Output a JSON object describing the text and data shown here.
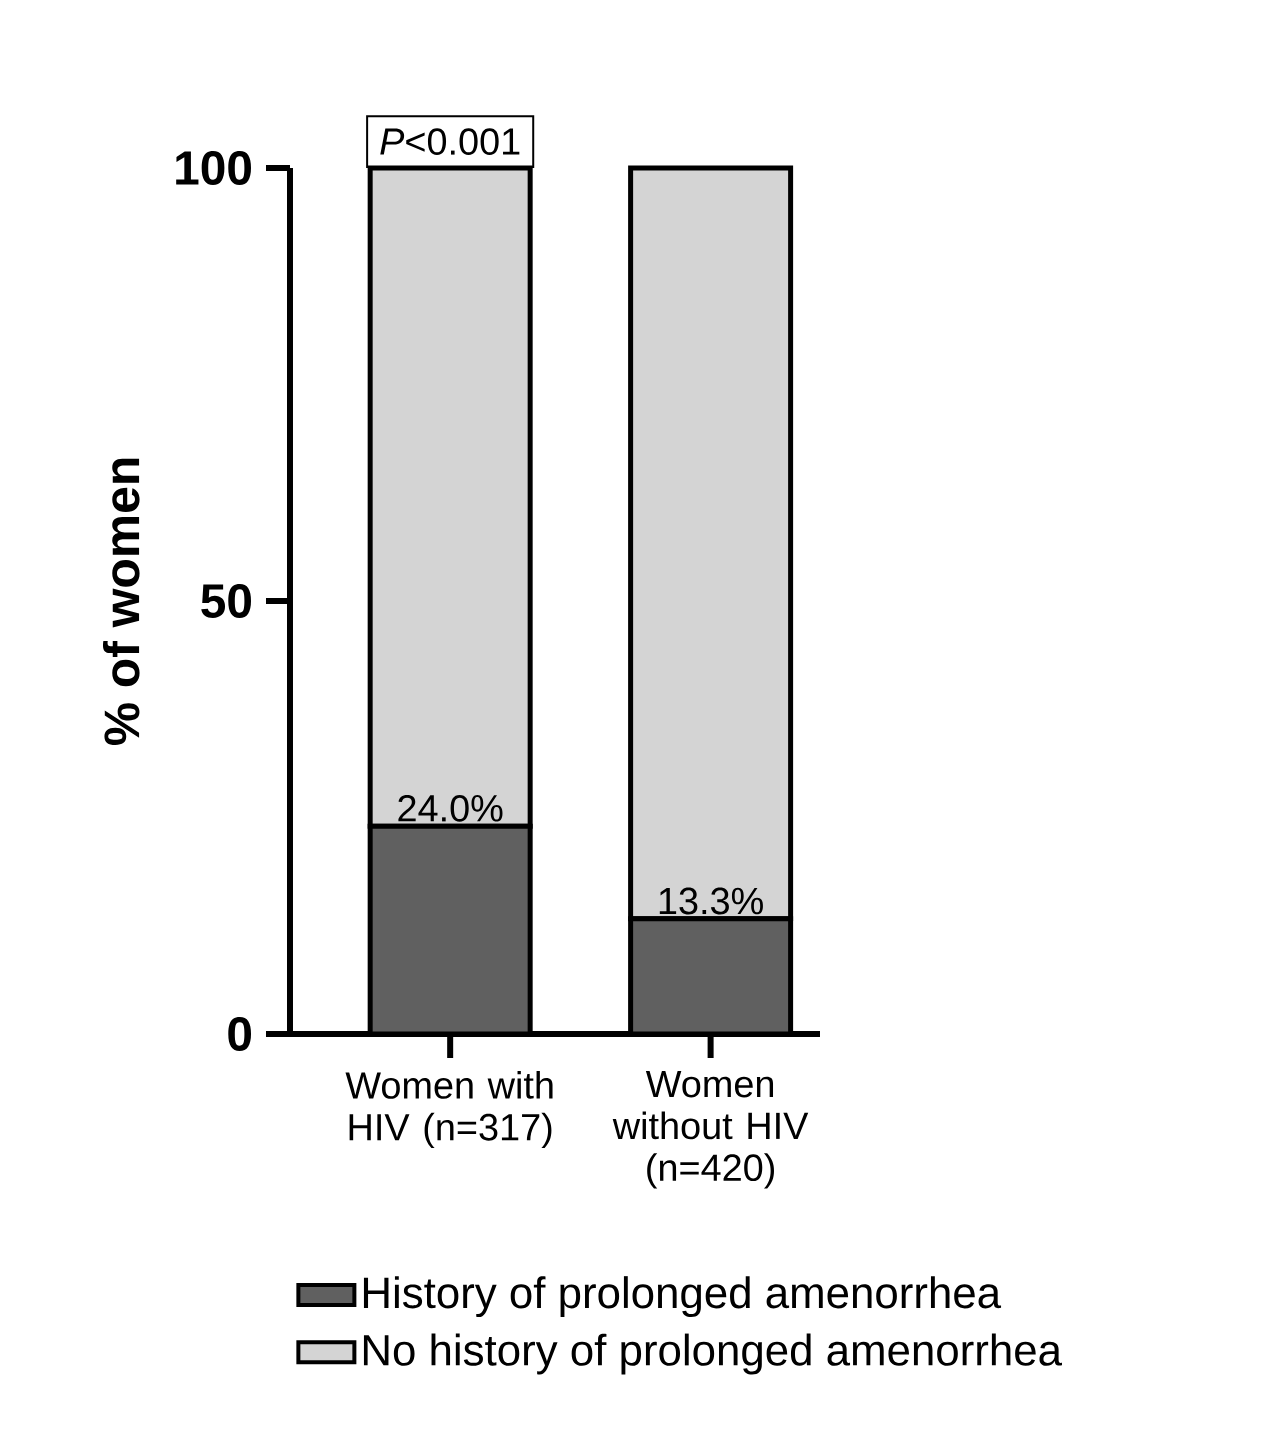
{
  "chart_data": {
    "type": "bar",
    "stacked": true,
    "ylabel": "% of women",
    "categories": [
      "Women with HIV (n=317)",
      "Women without HIV (n=420)"
    ],
    "series": [
      {
        "name": "History of prolonged amenorrhea",
        "color": "#606060",
        "values": [
          24.0,
          13.3
        ],
        "value_labels": [
          "24.0%",
          "13.3%"
        ]
      },
      {
        "name": "No history of prolonged amenorrhea",
        "color": "#d4d4d4",
        "values": [
          76.0,
          86.7
        ]
      }
    ],
    "ylim": [
      0,
      100
    ],
    "yticks": [
      0,
      50,
      100
    ],
    "grid": false,
    "legend": "bottom",
    "annotations": [
      "*P*<0.001"
    ]
  }
}
